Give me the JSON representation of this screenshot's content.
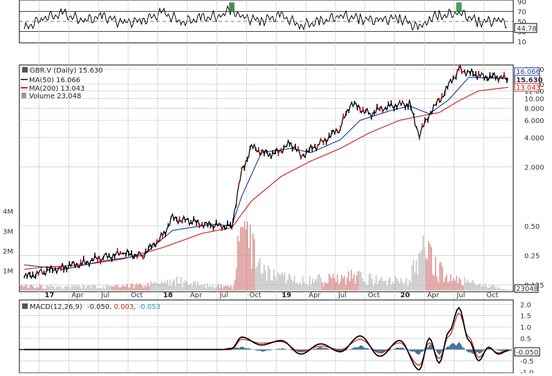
{
  "colors": {
    "grid": "#c8c8c8",
    "price": "#000000",
    "up_candle": "#000000",
    "down_candle": "#cc0000",
    "ma50": "#1f3f9f",
    "ma200": "#cc2222",
    "volume": "#bdbdbd",
    "volume_down": "#d88888",
    "rsi_fill": "#2e8b3e",
    "macd_line": "#000000",
    "macd_signal": "#cc2222",
    "macd_hist": "#2b5f8a",
    "panel_border": "#000000"
  },
  "chart_data": [
    {
      "type": "line",
      "panel": "rsi",
      "y_ticks": [
        10,
        30,
        50,
        70,
        90
      ],
      "ylim": [
        10,
        90
      ],
      "reference_lines": [
        30,
        50,
        70
      ],
      "last_value": "44.78",
      "x_range": [
        "2016-11",
        "2020-12"
      ],
      "series": [
        {
          "x": [
            "2016-11",
            "2017-01",
            "2017-03",
            "2017-05",
            "2017-07",
            "2017-09",
            "2017-11",
            "2018-01",
            "2018-03",
            "2018-05",
            "2018-07",
            "2018-08",
            "2018-09",
            "2018-11",
            "2019-01",
            "2019-03",
            "2019-05",
            "2019-07",
            "2019-09",
            "2019-11",
            "2020-01",
            "2020-03",
            "2020-04",
            "2020-05",
            "2020-07",
            "2020-09",
            "2020-11",
            "2020-12"
          ],
          "values": [
            35,
            58,
            64,
            52,
            60,
            47,
            52,
            67,
            49,
            56,
            62,
            75,
            58,
            52,
            61,
            42,
            49,
            62,
            55,
            52,
            58,
            35,
            57,
            60,
            68,
            49,
            52,
            45
          ]
        }
      ]
    },
    {
      "type": "line",
      "panel": "price",
      "legend": [
        "GBR.V (Daily) 15.630",
        "MA(50) 16.066",
        "MA(200) 13.043",
        "Volume 23,048"
      ],
      "scale": "log",
      "y_ticks": [
        0.125,
        0.25,
        0.5,
        2.0,
        4.0,
        6.0,
        8.0,
        10.0,
        12.0,
        14.0,
        20.0
      ],
      "ylim": [
        0.11,
        21
      ],
      "last_values": {
        "price": "15.630",
        "ma50": "16.066",
        "ma200": "13.043",
        "volume": "23048"
      },
      "x_labels": [
        "17",
        "Apr",
        "Jul",
        "Oct",
        "18",
        "Apr",
        "Jul",
        "Oct",
        "19",
        "Apr",
        "Jul",
        "Oct",
        "20",
        "Apr",
        "Jul",
        "Oct"
      ],
      "volume_axis_labels": [
        "1M",
        "2M",
        "3M",
        "4M"
      ],
      "series": [
        {
          "name": "GBR.V (Daily)",
          "x": [
            "2016-11",
            "2017-01",
            "2017-03",
            "2017-05",
            "2017-07",
            "2017-09",
            "2017-11",
            "2018-01",
            "2018-02",
            "2018-04",
            "2018-06",
            "2018-08",
            "2018-09",
            "2018-10",
            "2018-12",
            "2019-02",
            "2019-03",
            "2019-05",
            "2019-07",
            "2019-08",
            "2019-10",
            "2019-12",
            "2020-02",
            "2020-03",
            "2020-04",
            "2020-05",
            "2020-07",
            "2020-09",
            "2020-11",
            "2020-12"
          ],
          "values": [
            0.15,
            0.17,
            0.19,
            0.21,
            0.24,
            0.26,
            0.25,
            0.4,
            0.6,
            0.55,
            0.5,
            0.5,
            1.8,
            3.2,
            2.6,
            3.5,
            2.6,
            3.5,
            5.0,
            9.0,
            7.0,
            8.5,
            8.8,
            4.2,
            7.0,
            9.5,
            20.0,
            17.0,
            16.5,
            15.63
          ]
        },
        {
          "name": "MA(50)",
          "x": [
            "2016-11",
            "2017-03",
            "2017-07",
            "2017-11",
            "2018-02",
            "2018-06",
            "2018-08",
            "2018-09",
            "2018-11",
            "2019-02",
            "2019-04",
            "2019-07",
            "2019-09",
            "2019-12",
            "2020-02",
            "2020-04",
            "2020-06",
            "2020-08",
            "2020-10",
            "2020-12"
          ],
          "values": [
            0.2,
            0.18,
            0.22,
            0.25,
            0.45,
            0.52,
            0.5,
            1.0,
            2.8,
            3.1,
            2.8,
            3.8,
            6.0,
            7.5,
            8.4,
            7.0,
            9.8,
            16.5,
            16.2,
            16.07
          ]
        },
        {
          "name": "MA(200)",
          "x": [
            "2016-11",
            "2017-01",
            "2017-05",
            "2017-09",
            "2018-01",
            "2018-05",
            "2018-08",
            "2018-10",
            "2019-01",
            "2019-04",
            "2019-07",
            "2019-10",
            "2020-01",
            "2020-03",
            "2020-05",
            "2020-07",
            "2020-09",
            "2020-12"
          ],
          "values": [
            0.18,
            0.19,
            0.2,
            0.23,
            0.3,
            0.42,
            0.48,
            0.9,
            1.6,
            2.3,
            3.1,
            4.5,
            6.0,
            6.6,
            7.2,
            9.5,
            12.0,
            13.04
          ]
        },
        {
          "name": "Volume",
          "x": [
            "2016-11",
            "2017-03",
            "2017-07",
            "2017-11",
            "2018-02",
            "2018-06",
            "2018-08",
            "2018-09",
            "2018-11",
            "2019-02",
            "2019-05",
            "2019-08",
            "2019-11",
            "2020-02",
            "2020-03",
            "2020-06",
            "2020-09",
            "2020-12"
          ],
          "values": [
            200000,
            150000,
            180000,
            250000,
            450000,
            200000,
            150000,
            3200000,
            800000,
            600000,
            500000,
            700000,
            400000,
            500000,
            1900000,
            500000,
            300000,
            23048
          ]
        }
      ]
    },
    {
      "type": "line",
      "panel": "macd",
      "legend_label": "MACD(12,26,9)",
      "legend_values": [
        "-0.050",
        "0.003",
        "-0.053"
      ],
      "y_ticks": [
        -1.0,
        -0.5,
        0.0,
        0.5,
        1.0,
        1.5,
        2.0
      ],
      "ylim": [
        -1.05,
        2.1
      ],
      "last_value": "-0.050",
      "series": [
        {
          "name": "MACD",
          "x": [
            "2016-11",
            "2018-07",
            "2018-08",
            "2018-09",
            "2018-11",
            "2019-01",
            "2019-03",
            "2019-05",
            "2019-07",
            "2019-09",
            "2019-11",
            "2020-01",
            "2020-03",
            "2020-04",
            "2020-05",
            "2020-06",
            "2020-07",
            "2020-08",
            "2020-09",
            "2020-10",
            "2020-11",
            "2020-12"
          ],
          "values": [
            0.0,
            0.0,
            0.05,
            0.55,
            0.2,
            0.4,
            -0.2,
            0.25,
            -0.1,
            0.6,
            -0.3,
            0.4,
            -0.9,
            0.5,
            -0.6,
            0.8,
            1.85,
            0.4,
            -0.5,
            0.1,
            -0.2,
            -0.05
          ]
        },
        {
          "name": "Signal",
          "x": [
            "2016-11",
            "2018-07",
            "2018-08",
            "2018-09",
            "2018-11",
            "2019-01",
            "2019-03",
            "2019-05",
            "2019-07",
            "2019-09",
            "2019-11",
            "2020-01",
            "2020-03",
            "2020-04",
            "2020-05",
            "2020-06",
            "2020-07",
            "2020-08",
            "2020-09",
            "2020-10",
            "2020-11",
            "2020-12"
          ],
          "values": [
            0.0,
            0.0,
            0.02,
            0.45,
            0.28,
            0.35,
            -0.1,
            0.15,
            0.0,
            0.45,
            -0.15,
            0.3,
            -0.7,
            0.3,
            -0.4,
            0.6,
            1.6,
            0.55,
            -0.35,
            0.05,
            -0.15,
            0.003
          ]
        },
        {
          "name": "Histogram",
          "x": [
            "2016-11",
            "2018-07",
            "2018-09",
            "2018-11",
            "2019-01",
            "2019-03",
            "2019-05",
            "2019-07",
            "2019-09",
            "2019-11",
            "2020-01",
            "2020-03",
            "2020-04",
            "2020-05",
            "2020-06",
            "2020-07",
            "2020-08",
            "2020-09",
            "2020-10",
            "2020-11",
            "2020-12"
          ],
          "values": [
            0.0,
            0.0,
            0.1,
            -0.08,
            0.05,
            -0.1,
            0.1,
            -0.1,
            0.15,
            -0.15,
            0.1,
            -0.2,
            0.2,
            -0.2,
            0.2,
            0.25,
            -0.15,
            -0.15,
            0.05,
            -0.05,
            -0.053
          ]
        }
      ]
    }
  ]
}
